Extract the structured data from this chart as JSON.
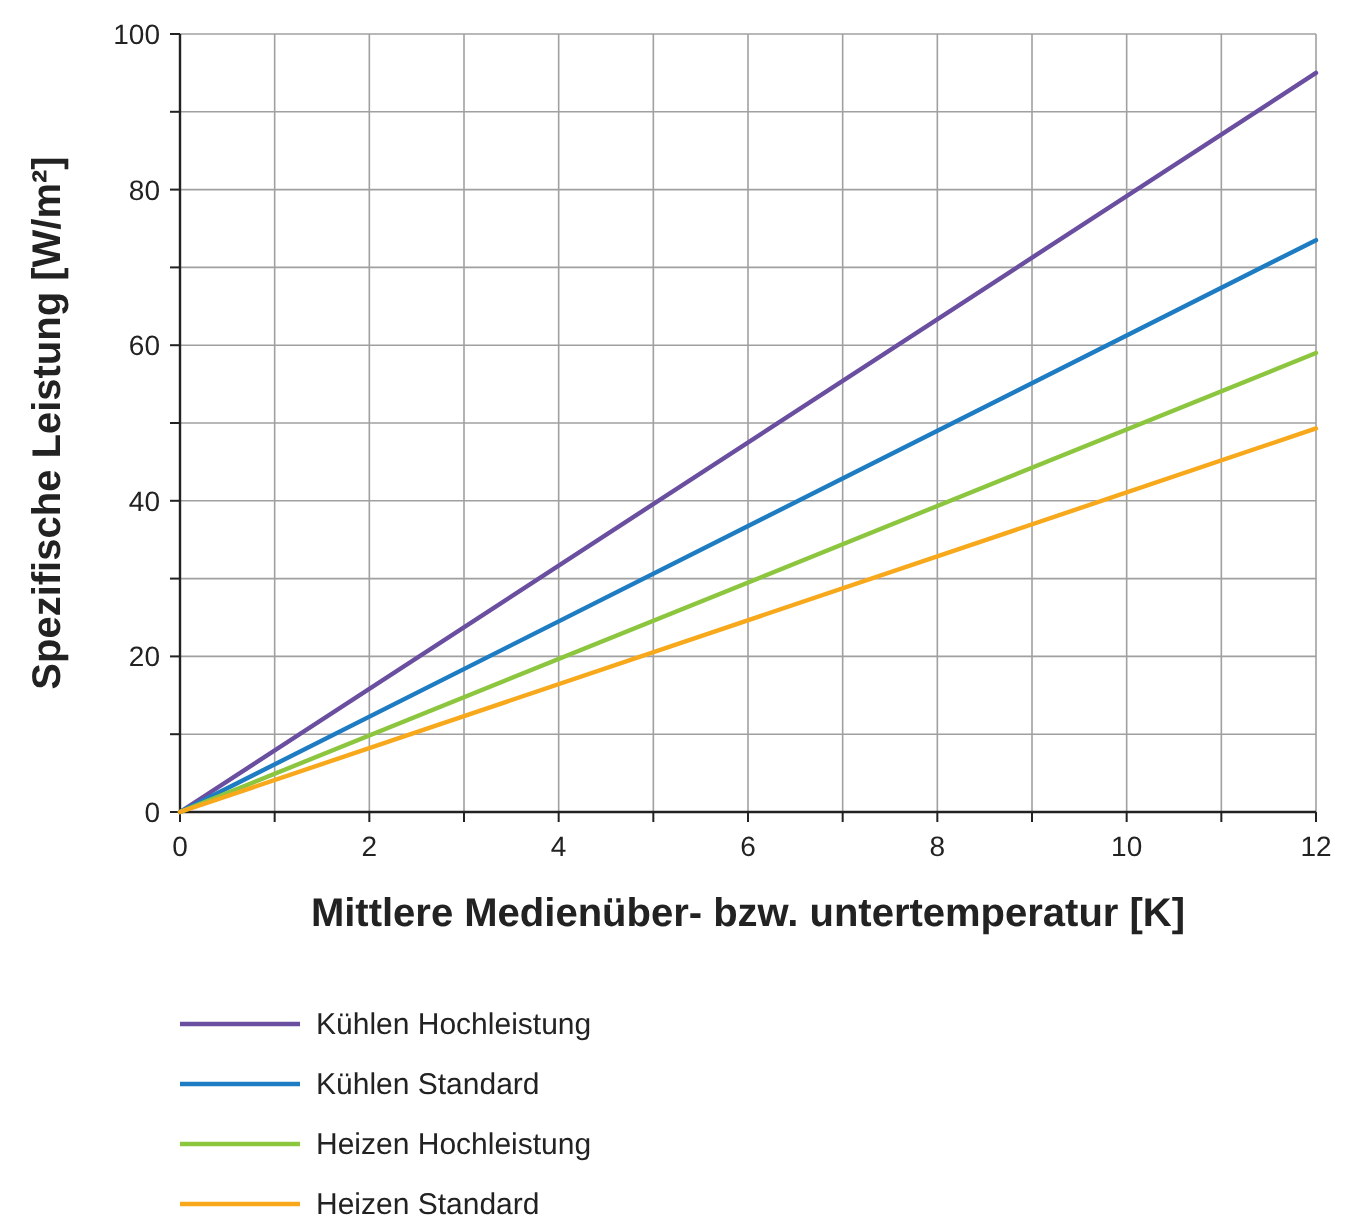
{
  "chart_data": {
    "type": "line",
    "xlabel": "Mittlere Medienüber- bzw. untertemperatur [K]",
    "ylabel": "Spezifische Leistung [W/m²]",
    "x": [
      0,
      12
    ],
    "series": [
      {
        "name": "Kühlen Hochleistung",
        "color": "#6a4fa0",
        "values": [
          0,
          95
        ]
      },
      {
        "name": "Kühlen Standard",
        "color": "#1e7cc2",
        "values": [
          0,
          73.5
        ]
      },
      {
        "name": "Heizen Hochleistung",
        "color": "#8cc63f",
        "values": [
          0,
          59
        ]
      },
      {
        "name": "Heizen Standard",
        "color": "#f7a81b",
        "values": [
          0,
          49.3
        ]
      }
    ],
    "xlim": [
      0,
      12
    ],
    "xticks": [
      0,
      {
        "value": 1,
        "label": null
      },
      2,
      {
        "value": 3,
        "label": null
      },
      4,
      {
        "value": 5,
        "label": null
      },
      6,
      {
        "value": 7,
        "label": null
      },
      8,
      {
        "value": 9,
        "label": null
      },
      10,
      {
        "value": 11,
        "label": null
      },
      12
    ],
    "ylim": [
      0,
      100
    ],
    "yticks": [
      0,
      {
        "value": 10,
        "label": null
      },
      20,
      {
        "value": 30,
        "label": null
      },
      40,
      {
        "value": 50,
        "label": null
      },
      60,
      {
        "value": 70,
        "label": null
      },
      80,
      {
        "value": 90,
        "label": null
      },
      100
    ],
    "grid": true,
    "legend": "bottom",
    "marker": "none",
    "line_style": "solid"
  }
}
